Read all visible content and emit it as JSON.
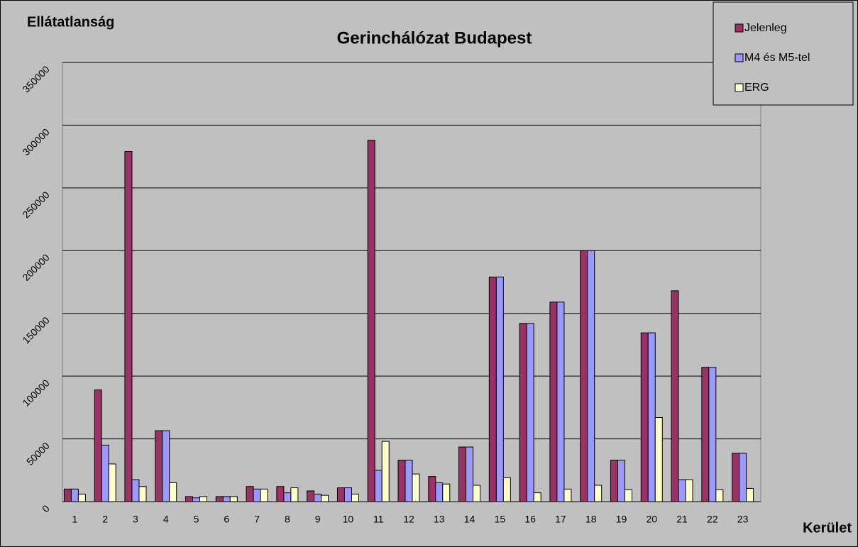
{
  "chart_data": {
    "type": "bar",
    "title": "Gerinchálózat Budapest",
    "y_label": "Ellátatlanság",
    "x_label": "Kerület",
    "categories": [
      "1",
      "2",
      "3",
      "4",
      "5",
      "6",
      "7",
      "8",
      "9",
      "10",
      "11",
      "12",
      "13",
      "14",
      "15",
      "16",
      "17",
      "18",
      "19",
      "20",
      "21",
      "22",
      "23"
    ],
    "series": [
      {
        "name": "Jelenleg",
        "color": "#993366",
        "values": [
          10000,
          89000,
          279000,
          56500,
          4000,
          4000,
          12000,
          12000,
          8500,
          11000,
          288000,
          33000,
          20000,
          43500,
          179000,
          142000,
          159000,
          200000,
          33000,
          134500,
          168000,
          107000,
          38500
        ]
      },
      {
        "name": "M4 és M5-tel",
        "color": "#9999ff",
        "values": [
          10000,
          45000,
          17500,
          56500,
          3000,
          4000,
          10000,
          7000,
          6000,
          11000,
          25000,
          33000,
          15000,
          43500,
          179000,
          142000,
          159000,
          200000,
          33000,
          134500,
          17500,
          107000,
          38500
        ]
      },
      {
        "name": "ERG",
        "color": "#ffffcc",
        "values": [
          6000,
          30000,
          12000,
          15000,
          4000,
          4000,
          10000,
          11000,
          5000,
          6000,
          48000,
          22000,
          14000,
          13000,
          19000,
          7000,
          10000,
          13000,
          9500,
          67000,
          17500,
          9500,
          10500
        ]
      }
    ],
    "ylim": [
      0,
      350000
    ],
    "yticks": [
      0,
      50000,
      100000,
      150000,
      200000,
      250000,
      300000,
      350000
    ],
    "grid": true,
    "legend": "top-right"
  }
}
